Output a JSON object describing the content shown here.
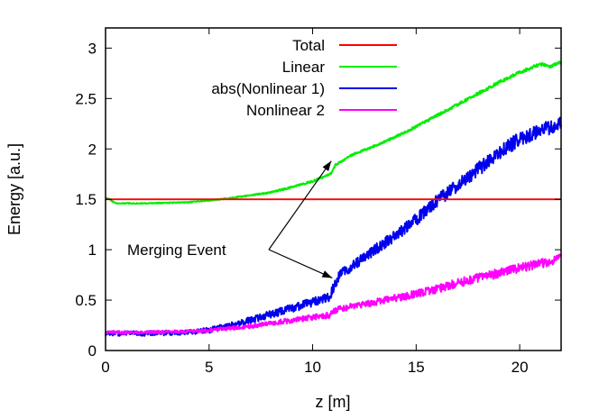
{
  "chart_data": {
    "type": "line",
    "title": "",
    "xlabel": "z [m]",
    "ylabel": "Energy [a.u.]",
    "xlim": [
      0,
      22
    ],
    "ylim": [
      0,
      3.2
    ],
    "xticks": [
      "0",
      "5",
      "10",
      "15",
      "20"
    ],
    "yticks": [
      "0",
      "0.5",
      "1",
      "1.5",
      "2",
      "2.5",
      "3"
    ],
    "legend_position": "top-right",
    "series": [
      {
        "name": "Total",
        "color": "#ff0000",
        "noise": 0,
        "x": [
          0,
          22
        ],
        "y": [
          1.5,
          1.5
        ]
      },
      {
        "name": "Linear",
        "color": "#00ee00",
        "noise": 0.015,
        "x": [
          0,
          0.5,
          2,
          4,
          5,
          6,
          7,
          8,
          9,
          10,
          10.5,
          10.9,
          11.1,
          12,
          13,
          14,
          15,
          16,
          17,
          18,
          19,
          20,
          21,
          21.5,
          22
        ],
        "y": [
          1.52,
          1.46,
          1.46,
          1.47,
          1.49,
          1.51,
          1.54,
          1.57,
          1.62,
          1.68,
          1.72,
          1.76,
          1.84,
          1.95,
          2.03,
          2.12,
          2.22,
          2.33,
          2.44,
          2.55,
          2.66,
          2.76,
          2.84,
          2.82,
          2.86
        ]
      },
      {
        "name": "abs(Nonlinear 1)",
        "color": "#0000ee",
        "noise": 0.07,
        "x": [
          0,
          2,
          4,
          5,
          6,
          7,
          8,
          9,
          10,
          10.8,
          11.0,
          11.3,
          12,
          13,
          14,
          15,
          16,
          17,
          18,
          19,
          20,
          21,
          22
        ],
        "y": [
          0.17,
          0.17,
          0.18,
          0.2,
          0.25,
          0.3,
          0.36,
          0.42,
          0.48,
          0.53,
          0.62,
          0.75,
          0.85,
          1.0,
          1.14,
          1.3,
          1.48,
          1.64,
          1.8,
          1.96,
          2.1,
          2.18,
          2.25
        ]
      },
      {
        "name": "Nonlinear 2",
        "color": "#ff00ff",
        "noise": 0.045,
        "x": [
          0,
          2,
          4,
          5,
          6,
          7,
          8,
          9,
          10,
          10.8,
          11.1,
          12,
          13,
          14,
          15,
          16,
          17,
          18,
          19,
          20,
          21,
          22
        ],
        "y": [
          0.18,
          0.18,
          0.19,
          0.2,
          0.22,
          0.24,
          0.27,
          0.3,
          0.33,
          0.35,
          0.4,
          0.44,
          0.48,
          0.52,
          0.56,
          0.61,
          0.67,
          0.72,
          0.77,
          0.82,
          0.86,
          0.92
        ]
      }
    ],
    "annotations": [
      {
        "text": "Merging Event",
        "arrows_to": [
          [
            10.9,
            1.88
          ],
          [
            10.95,
            0.72
          ]
        ]
      }
    ]
  }
}
